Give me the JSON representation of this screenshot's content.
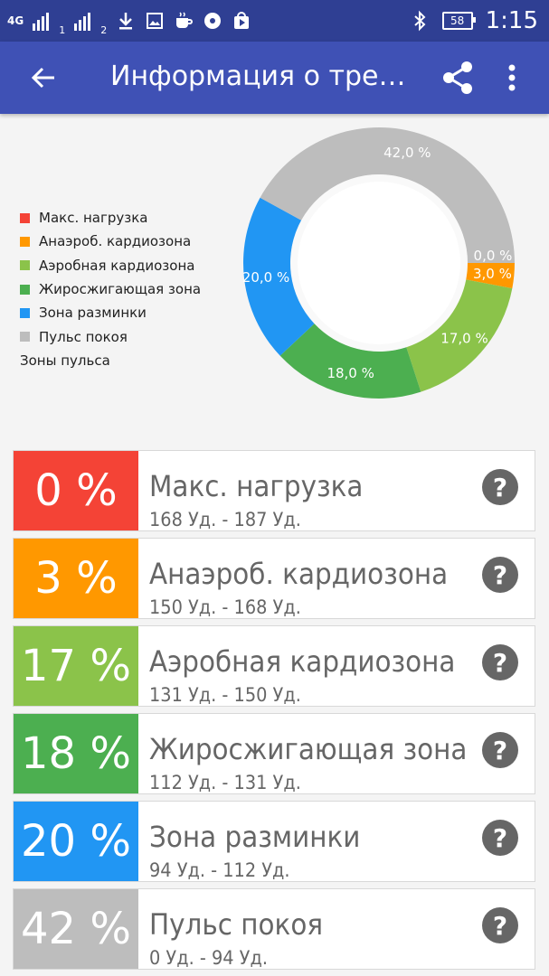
{
  "status_bar": {
    "network": "4G",
    "sim1": "1",
    "sim2": "2",
    "battery": "58",
    "time": "1:15",
    "icons": [
      "download-icon",
      "image-icon",
      "coffee-icon",
      "disc-icon",
      "play-store-icon",
      "bluetooth-icon"
    ]
  },
  "toolbar": {
    "title": "Информация о трени…",
    "back_icon": "arrow-left-icon",
    "share_icon": "share-icon",
    "more_icon": "more-vert-icon"
  },
  "legend": {
    "items": [
      {
        "label": "Макс. нагрузка",
        "color": "#f44336"
      },
      {
        "label": "Анаэроб. кардиозона",
        "color": "#ff9800"
      },
      {
        "label": "Аэробная кардиозона",
        "color": "#8bc34a"
      },
      {
        "label": "Жиросжигающая зона",
        "color": "#4caf50"
      },
      {
        "label": "Зона разминки",
        "color": "#2196f3"
      },
      {
        "label": "Пульс покоя",
        "color": "#bdbdbd"
      }
    ],
    "title": "Зоны пульса"
  },
  "chart_data": {
    "type": "pie",
    "title": "",
    "legend_title": "Зоны пульса",
    "legend_position": "left",
    "slices": [
      {
        "label": "Макс. нагрузка",
        "value": 0,
        "display": "0,0 %",
        "color": "#f44336"
      },
      {
        "label": "Анаэроб. кардиозона",
        "value": 3,
        "display": "3,0 %",
        "color": "#ff9800"
      },
      {
        "label": "Аэробная кардиозона",
        "value": 17,
        "display": "17,0 %",
        "color": "#8bc34a"
      },
      {
        "label": "Жиросжигающая зона",
        "value": 18,
        "display": "18,0 %",
        "color": "#4caf50"
      },
      {
        "label": "Зона разминки",
        "value": 20,
        "display": "20,0 %",
        "color": "#2196f3"
      },
      {
        "label": "Пульс покоя",
        "value": 42,
        "display": "42,0 %",
        "color": "#bdbdbd"
      }
    ]
  },
  "zones": [
    {
      "percent": "0 %",
      "name": "Макс. нагрузка",
      "range": "168 Уд. - 187 Уд.",
      "color": "#f44336",
      "help": "?"
    },
    {
      "percent": "3 %",
      "name": "Анаэроб. кардиозона",
      "range": "150 Уд. - 168 Уд.",
      "color": "#ff9800",
      "help": "?"
    },
    {
      "percent": "17 %",
      "name": "Аэробная кардиозона",
      "range": "131 Уд. - 150 Уд.",
      "color": "#8bc34a",
      "help": "?"
    },
    {
      "percent": "18 %",
      "name": "Жиросжигающая зона",
      "range": "112 Уд. - 131 Уд.",
      "color": "#4caf50",
      "help": "?"
    },
    {
      "percent": "20 %",
      "name": "Зона разминки",
      "range": "94 Уд. - 112 Уд.",
      "color": "#2196f3",
      "help": "?"
    },
    {
      "percent": "42 %",
      "name": "Пульс покоя",
      "range": "0 Уд. - 94 Уд.",
      "color": "#bdbdbd",
      "help": "?"
    }
  ]
}
